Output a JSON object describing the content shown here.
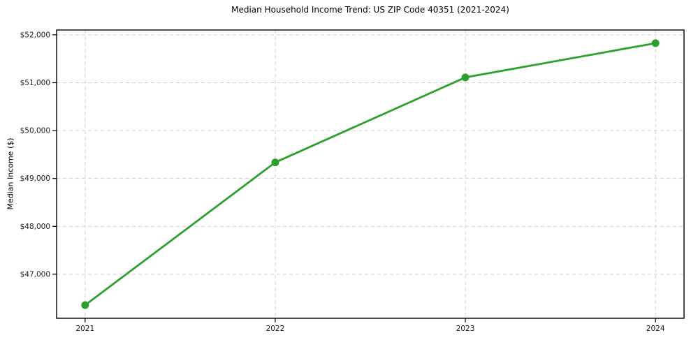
{
  "chart_data": {
    "type": "line",
    "title": "Median Household Income Trend: US ZIP Code 40351 (2021-2024)",
    "xlabel": "",
    "ylabel": "Median Income ($)",
    "categories": [
      "2021",
      "2022",
      "2023",
      "2024"
    ],
    "series": [
      {
        "name": "Median Household Income",
        "values": [
          46355,
          49335,
          51110,
          51825
        ],
        "color": "#2ca02c"
      }
    ],
    "yticks": [
      47000,
      48000,
      49000,
      50000,
      51000,
      52000
    ],
    "ytick_labels": [
      "$47,000",
      "$48,000",
      "$49,000",
      "$50,000",
      "$51,000",
      "$52,000"
    ],
    "ylim": [
      46080,
      52100
    ],
    "grid": true,
    "grid_style": "dashed",
    "legend_position": "none",
    "colors": {
      "line": "#2ca02c",
      "grid": "#d0d0d0",
      "border": "#000000",
      "tick_text": "#1a1a1a",
      "background": "#ffffff"
    }
  }
}
